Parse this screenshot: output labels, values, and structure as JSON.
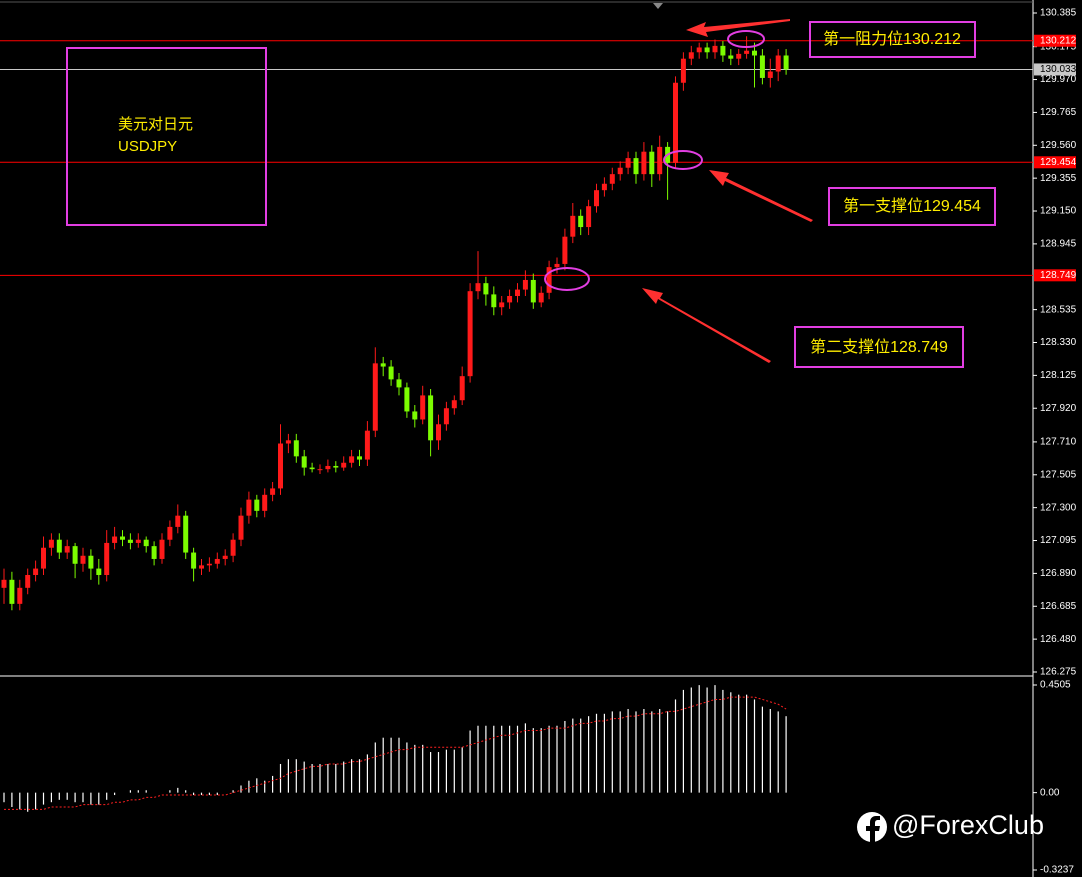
{
  "chart_data": [
    {
      "type": "candlestick",
      "up_color": "#ff1a1a",
      "down_color": "#7cfc00",
      "ylim": [
        126.275,
        130.385
      ],
      "yticks": [
        130.385,
        130.175,
        {
          "value": 129.97,
          "label": "129.970"
        },
        129.765,
        {
          "value": 129.56,
          "label": "129.560"
        },
        129.355,
        {
          "value": 129.15,
          "label": "129.150"
        },
        128.945,
        128.535,
        {
          "value": 128.33,
          "label": "128.330"
        },
        128.125,
        {
          "value": 127.92,
          "label": "127.920"
        },
        {
          "value": 127.71,
          "label": "127.710"
        },
        127.505,
        {
          "value": 127.3,
          "label": "127.300"
        },
        127.095,
        {
          "value": 126.89,
          "label": "126.890"
        },
        126.685,
        {
          "value": 126.48,
          "label": "126.480"
        },
        126.275
      ],
      "levels": [
        {
          "value": 130.212,
          "color": "#ff0000"
        },
        {
          "value": 130.033,
          "color": "#c8c8c8"
        },
        {
          "value": 129.454,
          "color": "#ff0000"
        },
        {
          "value": 128.749,
          "color": "#ff0000"
        }
      ],
      "title": "美元对日元",
      "subtitle": "USDJPY",
      "annotations": [
        "第一阻力位130.212",
        "第一支撑位129.454",
        "第二支撑位128.749"
      ],
      "ohlc": [
        [
          126.8,
          126.92,
          126.7,
          126.85
        ],
        [
          126.85,
          126.9,
          126.66,
          126.7
        ],
        [
          126.7,
          126.85,
          126.66,
          126.8
        ],
        [
          126.8,
          126.92,
          126.76,
          126.88
        ],
        [
          126.88,
          126.97,
          126.84,
          126.92
        ],
        [
          126.92,
          127.12,
          126.88,
          127.05
        ],
        [
          127.05,
          127.14,
          127.0,
          127.1
        ],
        [
          127.1,
          127.14,
          126.98,
          127.02
        ],
        [
          127.02,
          127.1,
          126.98,
          127.06
        ],
        [
          127.06,
          127.08,
          126.86,
          126.95
        ],
        [
          126.95,
          127.05,
          126.9,
          127.0
        ],
        [
          127.0,
          127.04,
          126.85,
          126.92
        ],
        [
          126.92,
          126.98,
          126.82,
          126.88
        ],
        [
          126.88,
          127.16,
          126.84,
          127.08
        ],
        [
          127.08,
          127.18,
          127.04,
          127.12
        ],
        [
          127.12,
          127.16,
          127.06,
          127.1
        ],
        [
          127.1,
          127.14,
          127.04,
          127.08
        ],
        [
          127.08,
          127.14,
          127.05,
          127.1
        ],
        [
          127.1,
          127.12,
          127.02,
          127.06
        ],
        [
          127.06,
          127.09,
          126.94,
          126.98
        ],
        [
          126.98,
          127.14,
          126.95,
          127.1
        ],
        [
          127.1,
          127.22,
          127.06,
          127.18
        ],
        [
          127.18,
          127.32,
          127.14,
          127.25
        ],
        [
          127.25,
          127.28,
          126.98,
          127.02
        ],
        [
          127.02,
          127.05,
          126.84,
          126.92
        ],
        [
          126.92,
          126.98,
          126.88,
          126.94
        ],
        [
          126.94,
          126.99,
          126.9,
          126.95
        ],
        [
          126.95,
          127.02,
          126.92,
          126.98
        ],
        [
          126.98,
          127.04,
          126.94,
          127.0
        ],
        [
          127.0,
          127.14,
          126.96,
          127.1
        ],
        [
          127.1,
          127.3,
          127.06,
          127.25
        ],
        [
          127.25,
          127.4,
          127.2,
          127.35
        ],
        [
          127.35,
          127.38,
          127.24,
          127.28
        ],
        [
          127.28,
          127.42,
          127.24,
          127.38
        ],
        [
          127.38,
          127.46,
          127.34,
          127.42
        ],
        [
          127.42,
          127.82,
          127.38,
          127.7
        ],
        [
          127.7,
          127.76,
          127.64,
          127.72
        ],
        [
          127.72,
          127.76,
          127.58,
          127.62
        ],
        [
          127.62,
          127.66,
          127.5,
          127.55
        ],
        [
          127.55,
          127.58,
          127.52,
          127.54
        ],
        [
          127.54,
          127.57,
          127.51,
          127.54
        ],
        [
          127.54,
          127.6,
          127.52,
          127.56
        ],
        [
          127.56,
          127.59,
          127.52,
          127.55
        ],
        [
          127.55,
          127.62,
          127.53,
          127.58
        ],
        [
          127.58,
          127.66,
          127.55,
          127.62
        ],
        [
          127.62,
          127.66,
          127.56,
          127.6
        ],
        [
          127.6,
          127.84,
          127.56,
          127.78
        ],
        [
          127.78,
          128.3,
          127.74,
          128.2
        ],
        [
          128.2,
          128.24,
          128.12,
          128.18
        ],
        [
          128.18,
          128.22,
          128.06,
          128.1
        ],
        [
          128.1,
          128.14,
          128.0,
          128.05
        ],
        [
          128.05,
          128.08,
          127.86,
          127.9
        ],
        [
          127.9,
          127.94,
          127.8,
          127.85
        ],
        [
          127.85,
          128.06,
          127.82,
          128.0
        ],
        [
          128.0,
          128.04,
          127.62,
          127.72
        ],
        [
          127.72,
          127.88,
          127.66,
          127.82
        ],
        [
          127.82,
          127.96,
          127.78,
          127.92
        ],
        [
          127.92,
          128.0,
          127.88,
          127.97
        ],
        [
          127.97,
          128.18,
          127.94,
          128.12
        ],
        [
          128.12,
          128.7,
          128.08,
          128.65
        ],
        [
          128.65,
          128.9,
          128.6,
          128.7
        ],
        [
          128.7,
          128.74,
          128.56,
          128.63
        ],
        [
          128.63,
          128.68,
          128.5,
          128.55
        ],
        [
          128.55,
          128.62,
          128.5,
          128.58
        ],
        [
          128.58,
          128.66,
          128.54,
          128.62
        ],
        [
          128.62,
          128.7,
          128.58,
          128.66
        ],
        [
          128.66,
          128.78,
          128.62,
          128.72
        ],
        [
          128.72,
          128.76,
          128.54,
          128.58
        ],
        [
          128.58,
          128.68,
          128.55,
          128.64
        ],
        [
          128.64,
          128.84,
          128.6,
          128.8
        ],
        [
          128.8,
          128.86,
          128.76,
          128.82
        ],
        [
          128.82,
          129.04,
          128.78,
          128.99
        ],
        [
          128.99,
          129.2,
          128.95,
          129.12
        ],
        [
          129.12,
          129.16,
          129.0,
          129.05
        ],
        [
          129.05,
          129.22,
          129.0,
          129.18
        ],
        [
          129.18,
          129.32,
          129.14,
          129.28
        ],
        [
          129.28,
          129.36,
          129.24,
          129.32
        ],
        [
          129.32,
          129.42,
          129.28,
          129.38
        ],
        [
          129.38,
          129.46,
          129.34,
          129.42
        ],
        [
          129.42,
          129.52,
          129.38,
          129.48
        ],
        [
          129.48,
          129.52,
          129.32,
          129.38
        ],
        [
          129.38,
          129.58,
          129.34,
          129.52
        ],
        [
          129.52,
          129.56,
          129.3,
          129.38
        ],
        [
          129.38,
          129.62,
          129.34,
          129.55
        ],
        [
          129.55,
          129.58,
          129.22,
          129.45
        ],
        [
          129.45,
          129.99,
          129.42,
          129.95
        ],
        [
          129.95,
          130.14,
          129.9,
          130.1
        ],
        [
          130.1,
          130.18,
          130.06,
          130.14
        ],
        [
          130.14,
          130.2,
          130.1,
          130.17
        ],
        [
          130.17,
          130.2,
          130.1,
          130.14
        ],
        [
          130.14,
          130.22,
          130.1,
          130.18
        ],
        [
          130.18,
          130.21,
          130.08,
          130.12
        ],
        [
          130.12,
          130.16,
          130.06,
          130.1
        ],
        [
          130.1,
          130.16,
          130.06,
          130.13
        ],
        [
          130.13,
          130.24,
          130.1,
          130.15
        ],
        [
          130.15,
          130.2,
          129.92,
          130.12
        ],
        [
          130.12,
          130.16,
          129.94,
          129.98
        ],
        [
          129.98,
          130.1,
          129.92,
          130.02
        ],
        [
          130.02,
          130.16,
          129.96,
          130.12
        ],
        [
          130.12,
          130.16,
          130.0,
          130.033
        ]
      ]
    },
    {
      "type": "macd",
      "ylim": [
        -0.3237,
        0.4505
      ],
      "yticks": [
        0.4505,
        {
          "value": 0,
          "label": "0.00"
        },
        -0.3237
      ],
      "histogram_color": "#ffffff",
      "signal_color": "#ff2020",
      "histogram": [
        -0.04,
        -0.06,
        -0.07,
        -0.08,
        -0.07,
        -0.05,
        -0.04,
        -0.03,
        -0.03,
        -0.04,
        -0.04,
        -0.05,
        -0.05,
        -0.03,
        -0.01,
        0.0,
        0.01,
        0.01,
        0.01,
        0.0,
        0.0,
        0.01,
        0.02,
        0.01,
        -0.01,
        -0.01,
        -0.01,
        -0.01,
        0.0,
        0.01,
        0.03,
        0.05,
        0.06,
        0.05,
        0.07,
        0.12,
        0.14,
        0.14,
        0.13,
        0.12,
        0.12,
        0.12,
        0.12,
        0.13,
        0.14,
        0.14,
        0.16,
        0.21,
        0.23,
        0.23,
        0.23,
        0.21,
        0.2,
        0.2,
        0.17,
        0.17,
        0.18,
        0.18,
        0.19,
        0.26,
        0.28,
        0.28,
        0.28,
        0.28,
        0.28,
        0.28,
        0.29,
        0.27,
        0.27,
        0.28,
        0.28,
        0.3,
        0.31,
        0.31,
        0.32,
        0.33,
        0.33,
        0.34,
        0.34,
        0.35,
        0.34,
        0.35,
        0.34,
        0.35,
        0.34,
        0.39,
        0.43,
        0.44,
        0.45,
        0.44,
        0.45,
        0.43,
        0.42,
        0.41,
        0.41,
        0.39,
        0.36,
        0.35,
        0.34,
        0.32
      ],
      "signal": [
        -0.07,
        -0.07,
        -0.07,
        -0.07,
        -0.07,
        -0.07,
        -0.06,
        -0.06,
        -0.06,
        -0.06,
        -0.05,
        -0.05,
        -0.05,
        -0.05,
        -0.04,
        -0.04,
        -0.03,
        -0.03,
        -0.02,
        -0.02,
        -0.01,
        -0.01,
        -0.01,
        -0.01,
        -0.01,
        -0.01,
        -0.01,
        -0.01,
        -0.01,
        0.0,
        0.01,
        0.02,
        0.03,
        0.04,
        0.05,
        0.06,
        0.08,
        0.09,
        0.1,
        0.11,
        0.11,
        0.12,
        0.12,
        0.12,
        0.13,
        0.13,
        0.14,
        0.15,
        0.16,
        0.17,
        0.18,
        0.18,
        0.19,
        0.19,
        0.19,
        0.19,
        0.19,
        0.19,
        0.19,
        0.2,
        0.21,
        0.22,
        0.23,
        0.24,
        0.24,
        0.25,
        0.26,
        0.26,
        0.26,
        0.27,
        0.27,
        0.27,
        0.28,
        0.29,
        0.29,
        0.3,
        0.3,
        0.31,
        0.31,
        0.32,
        0.32,
        0.33,
        0.33,
        0.33,
        0.34,
        0.34,
        0.35,
        0.36,
        0.37,
        0.38,
        0.39,
        0.39,
        0.4,
        0.4,
        0.4,
        0.4,
        0.39,
        0.38,
        0.37,
        0.35
      ]
    }
  ],
  "watermark": "@ForexClub"
}
